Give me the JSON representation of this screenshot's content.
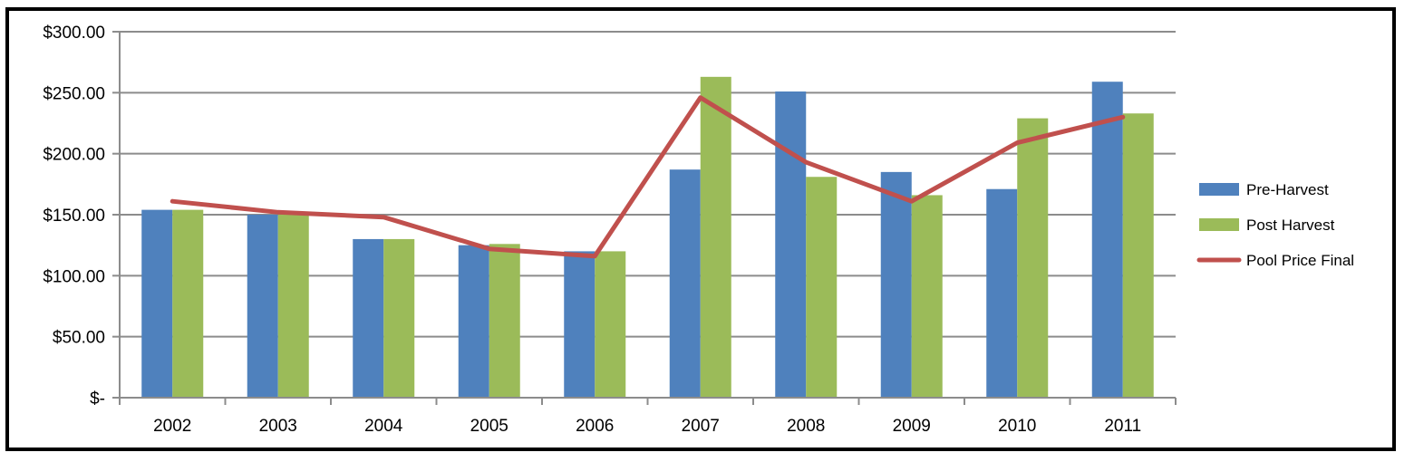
{
  "chart_data": {
    "type": "bar",
    "title": "",
    "xlabel": "",
    "ylabel": "",
    "categories": [
      "2002",
      "2003",
      "2004",
      "2005",
      "2006",
      "2007",
      "2008",
      "2009",
      "2010",
      "2011"
    ],
    "ylim": [
      0,
      300
    ],
    "yticks": [
      0,
      50,
      100,
      150,
      200,
      250,
      300
    ],
    "ytick_labels": [
      "$-",
      "$50.00",
      "$100.00",
      "$150.00",
      "$200.00",
      "$250.00",
      "$300.00"
    ],
    "grid": true,
    "legend_position": "right",
    "series": [
      {
        "name": "Pre-Harvest",
        "type": "bar",
        "color": "#4F81BD",
        "values": [
          154,
          150,
          130,
          125,
          120,
          187,
          251,
          185,
          171,
          259
        ]
      },
      {
        "name": "Post Harvest",
        "type": "bar",
        "color": "#9BBB59",
        "values": [
          154,
          150,
          130,
          126,
          120,
          263,
          181,
          166,
          229,
          233
        ]
      },
      {
        "name": "Pool Price Final",
        "type": "line",
        "color": "#C0504D",
        "values": [
          161,
          152,
          148,
          122,
          116,
          246,
          193,
          161,
          209,
          230
        ]
      }
    ]
  }
}
